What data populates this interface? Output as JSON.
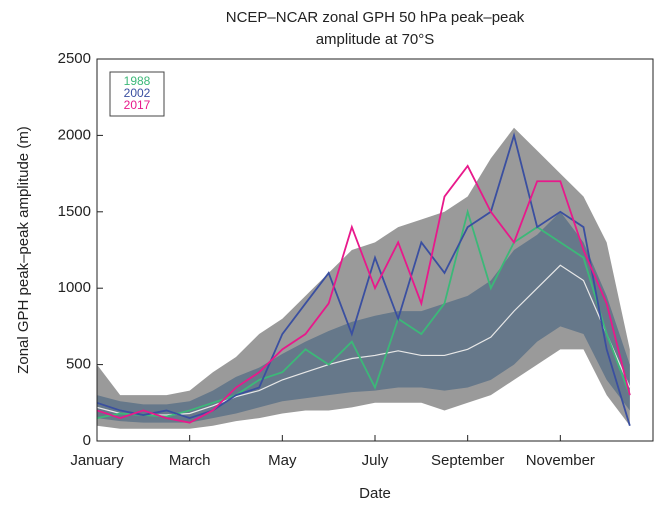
{
  "chart_data": {
    "type": "line",
    "title": [
      "NCEP–NCAR zonal GPH 50 hPa peak–peak",
      "amplitude at 70°S"
    ],
    "x_label": "Date",
    "y_label": "Zonal GPH peak–peak amplitude (m)",
    "categories": [
      "January",
      null,
      null,
      null,
      "March",
      null,
      null,
      null,
      "May",
      null,
      null,
      null,
      "July",
      null,
      null,
      null,
      "September",
      null,
      null,
      null,
      "November",
      null,
      null,
      null
    ],
    "ylim": [
      0,
      2500
    ],
    "yticks": [
      0,
      500,
      1000,
      1500,
      2000,
      2500
    ],
    "bands": [
      {
        "color": "#9a9a9a",
        "upper": [
          500,
          300,
          300,
          300,
          330,
          450,
          550,
          700,
          800,
          950,
          1100,
          1250,
          1300,
          1400,
          1450,
          1500,
          1600,
          1850,
          2050,
          1900,
          1750,
          1600,
          1300,
          600
        ],
        "lower": [
          100,
          80,
          80,
          80,
          80,
          100,
          130,
          150,
          180,
          200,
          200,
          220,
          250,
          250,
          250,
          200,
          250,
          300,
          400,
          500,
          600,
          600,
          300,
          100
        ]
      },
      {
        "color": "#66788a",
        "upper": [
          300,
          260,
          240,
          240,
          260,
          330,
          420,
          480,
          570,
          650,
          720,
          780,
          820,
          850,
          850,
          900,
          950,
          1050,
          1250,
          1350,
          1500,
          1300,
          950,
          500
        ],
        "lower": [
          150,
          130,
          120,
          120,
          120,
          150,
          180,
          220,
          260,
          280,
          300,
          320,
          330,
          350,
          350,
          330,
          350,
          400,
          500,
          650,
          750,
          700,
          400,
          200
        ]
      }
    ],
    "mean": {
      "color": "#e8e8e8",
      "values": [
        220,
        180,
        170,
        170,
        180,
        230,
        290,
        330,
        400,
        450,
        500,
        540,
        560,
        590,
        560,
        560,
        600,
        680,
        850,
        1000,
        1150,
        1050,
        700,
        350
      ]
    },
    "series": [
      {
        "name": "1988",
        "color": "#3cb878",
        "values": [
          150,
          180,
          170,
          160,
          200,
          250,
          300,
          400,
          450,
          600,
          500,
          650,
          350,
          800,
          700,
          900,
          1500,
          1000,
          1300,
          1400,
          1300,
          1200,
          700,
          300
        ]
      },
      {
        "name": "2002",
        "color": "#3a4fa0",
        "values": [
          250,
          200,
          170,
          200,
          150,
          200,
          300,
          350,
          700,
          900,
          1100,
          700,
          1200,
          800,
          1300,
          1100,
          1400,
          1500,
          2000,
          1400,
          1500,
          1400,
          600,
          100
        ]
      },
      {
        "name": "2017",
        "color": "#e8198b",
        "values": [
          200,
          150,
          200,
          150,
          120,
          200,
          350,
          450,
          600,
          700,
          900,
          1400,
          1000,
          1300,
          900,
          1600,
          1800,
          1500,
          1300,
          1700,
          1700,
          1250,
          900,
          300
        ]
      }
    ]
  }
}
